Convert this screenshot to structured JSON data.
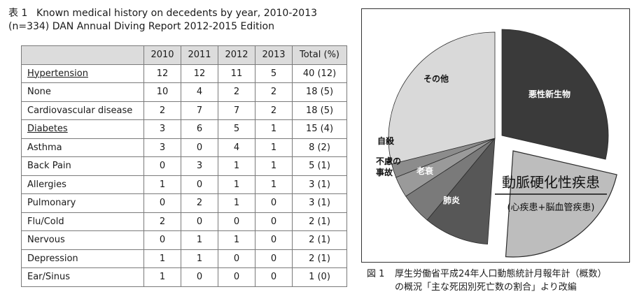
{
  "table_caption": {
    "number": "表 1",
    "line1": "Known medical history on decedents by year, 2010-2013",
    "line2": "(n=334) DAN Annual Diving Report 2012-2015 Edition"
  },
  "table": {
    "headers": [
      "",
      "2010",
      "2011",
      "2012",
      "2013",
      "Total (%)"
    ],
    "rows": [
      {
        "name": "Hypertension",
        "v": [
          "12",
          "12",
          "11",
          "5",
          "40 (12)"
        ]
      },
      {
        "name": "None",
        "v": [
          "10",
          "4",
          "2",
          "2",
          "18 (5)"
        ]
      },
      {
        "name": "Cardiovascular disease",
        "v": [
          "2",
          "7",
          "7",
          "2",
          "18 (5)"
        ]
      },
      {
        "name": "Diabetes",
        "v": [
          "3",
          "6",
          "5",
          "1",
          "15 (4)"
        ]
      },
      {
        "name": "Asthma",
        "v": [
          "3",
          "0",
          "4",
          "1",
          "8 (2)"
        ]
      },
      {
        "name": "Back Pain",
        "v": [
          "0",
          "3",
          "1",
          "1",
          "5 (1)"
        ]
      },
      {
        "name": "Allergies",
        "v": [
          "1",
          "0",
          "1",
          "1",
          "3 (1)"
        ]
      },
      {
        "name": "Pulmonary",
        "v": [
          "0",
          "2",
          "1",
          "0",
          "3 (1)"
        ]
      },
      {
        "name": "Flu/Cold",
        "v": [
          "2",
          "0",
          "0",
          "0",
          "2 (1)"
        ]
      },
      {
        "name": "Nervous",
        "v": [
          "0",
          "1",
          "1",
          "0",
          "2 (1)"
        ]
      },
      {
        "name": "Depression",
        "v": [
          "1",
          "1",
          "0",
          "0",
          "2 (1)"
        ]
      },
      {
        "name": "Ear/Sinus",
        "v": [
          "1",
          "0",
          "0",
          "0",
          "1 (0)"
        ]
      }
    ]
  },
  "chart_data": {
    "type": "pie",
    "slices": [
      {
        "label": "悪性新生物",
        "share": 0.286,
        "color": "#3a3a3a"
      },
      {
        "label": "動脈硬化性疾患",
        "sub_label": "(心疾患+脳血管疾患)",
        "share": 0.225,
        "color": "#bdbdbd"
      },
      {
        "label": "肺炎",
        "share": 0.099,
        "color": "#575757"
      },
      {
        "label": "老衰",
        "share": 0.048,
        "color": "#7a7a7a"
      },
      {
        "label": "不慮の事故",
        "share": 0.032,
        "color": "#9a9a9a"
      },
      {
        "label": "自殺",
        "share": 0.021,
        "color": "#8c8c8c"
      },
      {
        "label": "その他",
        "share": 0.289,
        "color": "#d9d9d9"
      }
    ]
  },
  "figure_caption": {
    "number": "図 1",
    "line1": "厚生労働省平成24年人口動態統計月報年計（概数）",
    "line2": "の概況「主な死因別死亡数の割合」より改編"
  }
}
